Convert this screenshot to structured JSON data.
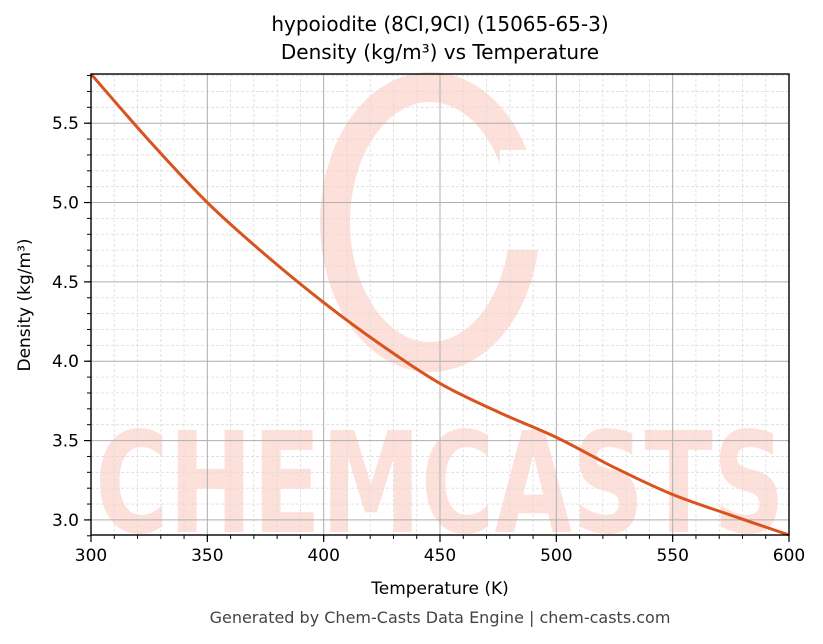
{
  "chart": {
    "title_line1": "hypoiodite (8CI,9CI) (15065-65-3)",
    "title_line2": "Density (kg/m³) vs Temperature",
    "xlabel": "Temperature (K)",
    "ylabel": "Density (kg/m³)",
    "footer": "Generated by Chem-Casts Data Engine | chem-casts.com",
    "watermark_text": "CHEMCASTS",
    "colors": {
      "line": "#d9531e",
      "watermark": "#fde0da",
      "major_grid": "#b0b0b0",
      "minor_grid": "#dcdcdc",
      "footer_text": "#444444"
    }
  },
  "chart_data": {
    "type": "line",
    "title": "hypoiodite (8CI,9CI) (15065-65-3) Density (kg/m³) vs Temperature",
    "xlabel": "Temperature (K)",
    "ylabel": "Density (kg/m³)",
    "xlim": [
      300,
      600
    ],
    "ylim": [
      2.905,
      5.81
    ],
    "xticks": [
      300,
      350,
      400,
      450,
      500,
      550,
      600
    ],
    "xtick_labels": [
      "300",
      "350",
      "400",
      "450",
      "500",
      "550",
      "600"
    ],
    "yticks": [
      3.0,
      3.5,
      4.0,
      4.5,
      5.0,
      5.5
    ],
    "ytick_labels": [
      "3.0",
      "3.5",
      "4.0",
      "4.5",
      "5.0",
      "5.5"
    ],
    "grid": true,
    "legend": null,
    "series": [
      {
        "name": "Density",
        "x": [
          300,
          325,
          350,
          375,
          400,
          425,
          450,
          475,
          500,
          525,
          550,
          575,
          600
        ],
        "y": [
          5.81,
          5.39,
          5.0,
          4.67,
          4.37,
          4.1,
          3.86,
          3.68,
          3.52,
          3.33,
          3.16,
          3.03,
          2.905
        ]
      }
    ]
  }
}
